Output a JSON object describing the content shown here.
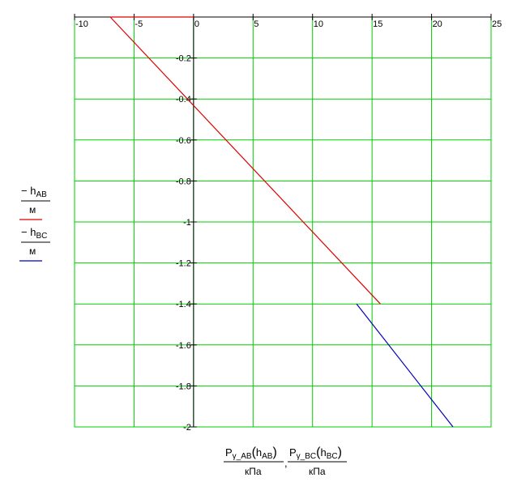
{
  "chart_data": {
    "type": "line",
    "xlim": [
      -10,
      25
    ],
    "ylim": [
      -2,
      0
    ],
    "x_ticks": [
      -10,
      -5,
      0,
      5,
      10,
      15,
      20,
      25
    ],
    "x_tick_labels": [
      "-10",
      "-5",
      "0",
      "5",
      "10",
      "15",
      "20",
      "25"
    ],
    "y_ticks": [
      -0.2,
      -0.4,
      -0.6,
      -0.8,
      -1,
      -1.2,
      -1.4,
      -1.6,
      -1.8,
      -2
    ],
    "y_tick_labels": [
      "-0.2",
      "-0.4",
      "-0.6",
      "-0.8",
      "-1",
      "-1.2",
      "-1.4",
      "-1.6",
      "-1.8",
      "-2"
    ],
    "grid": true,
    "grid_color": "#00cc00",
    "x_axis_position": "top",
    "xlabel": {
      "expr1_num_main": "P",
      "expr1_num_sub": "γ_AB",
      "expr1_arg_main": "h",
      "expr1_arg_sub": "AB",
      "expr2_num_main": "P",
      "expr2_num_sub": "γ_BC",
      "expr2_arg_main": "h",
      "expr2_arg_sub": "BC",
      "denominator": "кПа",
      "separator": ","
    },
    "ylabel": {
      "expr1_main": "− h",
      "expr1_sub": "AB",
      "expr2_main": "− h",
      "expr2_sub": "BC",
      "denominator": "м"
    },
    "series": [
      {
        "color": "#dd0000",
        "x": [
          -7,
          15.7
        ],
        "y": [
          0,
          -1.4
        ]
      },
      {
        "color": "#0000bb",
        "x": [
          13.7,
          21.8
        ],
        "y": [
          -1.4,
          -2
        ]
      }
    ],
    "top_red_segment": {
      "color": "#dd0000",
      "x": [
        -7,
        0
      ],
      "y": [
        0,
        0
      ]
    }
  }
}
